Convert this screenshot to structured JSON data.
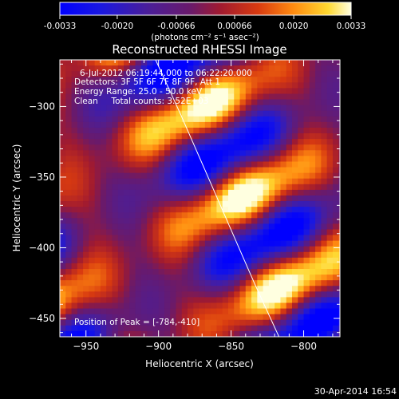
{
  "colorbar": {
    "ticks": [
      -0.0033,
      -0.002,
      -0.00066,
      0.00066,
      0.002,
      0.0033
    ],
    "tick_labels": [
      "-0.0033",
      "-0.0020",
      "-0.00066",
      "0.00066",
      "0.0020",
      "0.0033"
    ],
    "units_label": "(photons cm⁻² s⁻¹ asec⁻²)",
    "colormap": [
      "#0000ff",
      "#3a1fb0",
      "#5a1a80",
      "#9a1e3a",
      "#d0401a",
      "#ff8a10",
      "#ffd830",
      "#ffffc0"
    ]
  },
  "chart_data": {
    "type": "heatmap",
    "title": "Reconstructed RHESSI Image",
    "xlabel": "Heliocentric X (arcsec)",
    "ylabel": "Heliocentric Y (arcsec)",
    "xlim": [
      -968,
      -775
    ],
    "ylim": [
      -463,
      -267
    ],
    "x_ticks": [
      -950,
      -900,
      -850,
      -800
    ],
    "y_ticks": [
      -300,
      -350,
      -400,
      -450
    ],
    "annotations": [
      "6-Jul-2012 06:19:44.000 to 06:22:20.000",
      "Detectors: 3F 5F 6F 7F 8F 9F, Att 1",
      "Energy Range: 25.0 - 50.0 keV",
      "Clean     Total counts: 3.52E+03"
    ],
    "peak_label": "Position of Peak = [-784,-410]",
    "limb_curve": {
      "x": [
        -902,
        -885,
        -868,
        -851,
        -834,
        -817
      ],
      "y": [
        -267,
        -305,
        -345,
        -385,
        -425,
        -463
      ]
    },
    "bands": [
      {
        "slope": -0.9,
        "offset": -290,
        "rows": [
          {
            "y": -292,
            "x": [
              -925,
              -905
            ],
            "v": [
              0.6,
              0.75
            ]
          },
          {
            "y": -300,
            "x": [
              -965,
              -945
            ],
            "v": [
              0.9,
              0.95
            ]
          },
          {
            "y": -305,
            "x": [
              -925,
              -903
            ],
            "v": [
              0.55,
              0.85
            ]
          }
        ]
      }
    ],
    "grid": {
      "x_start": -968,
      "x_step": 4.0,
      "y_start": -267,
      "y_step": 4.0
    }
  },
  "footer": {
    "timestamp": "30-Apr-2014 16:54"
  }
}
